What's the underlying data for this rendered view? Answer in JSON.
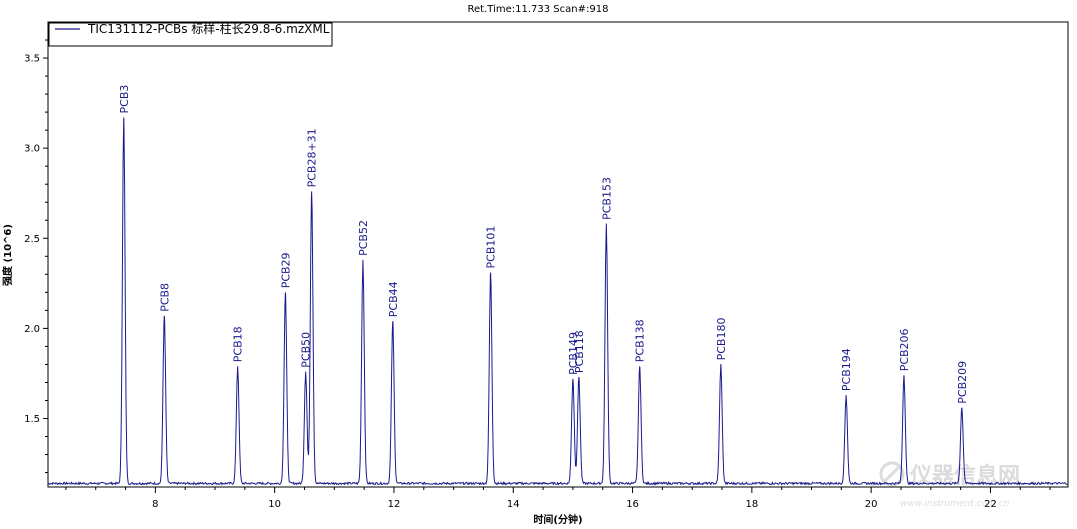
{
  "header": {
    "ret_time": "Ret.Time:11.733  Scan#:918"
  },
  "legend": {
    "label": "TIC131112-PCBs 标样-柱长29.8-6.mzXML"
  },
  "watermark": {
    "main": "仪器信息网",
    "sub": "www.instrument.com.cn"
  },
  "colors": {
    "trace": "#1a1a8c",
    "axis": "#000000",
    "background": "#ffffff"
  },
  "chart_data": {
    "type": "line",
    "xlabel": "时间(分钟)",
    "ylabel": "强度 (10^6)",
    "xlim": [
      6.2,
      23.3
    ],
    "ylim": [
      1.12,
      3.7
    ],
    "x_ticks": [
      8,
      10,
      12,
      14,
      16,
      18,
      20,
      22
    ],
    "x_tick_labels": [
      "8",
      "10",
      "12",
      "14",
      "16",
      "18",
      "20",
      "22"
    ],
    "y_ticks": [
      1.5,
      2.0,
      2.5,
      3.0,
      3.5
    ],
    "y_tick_labels": [
      "1.5",
      "2.0",
      "2.5",
      "3.0",
      "3.5"
    ],
    "baseline": 1.14,
    "grid": false,
    "legend_position": "top-left",
    "series": [
      {
        "name": "TIC131112-PCBs 标样-柱长29.8-6.mzXML",
        "peaks": [
          {
            "label": "PCB3",
            "rt": 7.47,
            "intensity": 3.17
          },
          {
            "label": "PCB8",
            "rt": 8.15,
            "intensity": 2.07
          },
          {
            "label": "PCB18",
            "rt": 9.38,
            "intensity": 1.79
          },
          {
            "label": "PCB29",
            "rt": 10.18,
            "intensity": 2.2
          },
          {
            "label": "PCB50",
            "rt": 10.52,
            "intensity": 1.76
          },
          {
            "label": "PCB28+31",
            "rt": 10.62,
            "intensity": 2.76
          },
          {
            "label": "PCB52",
            "rt": 11.48,
            "intensity": 2.38
          },
          {
            "label": "PCB44",
            "rt": 11.98,
            "intensity": 2.04
          },
          {
            "label": "PCB101",
            "rt": 13.62,
            "intensity": 2.31
          },
          {
            "label": "PCB149",
            "rt": 15.0,
            "intensity": 1.72
          },
          {
            "label": "PCB118",
            "rt": 15.1,
            "intensity": 1.73
          },
          {
            "label": "PCB153",
            "rt": 15.56,
            "intensity": 2.58
          },
          {
            "label": "PCB138",
            "rt": 16.12,
            "intensity": 1.79
          },
          {
            "label": "PCB180",
            "rt": 17.48,
            "intensity": 1.8
          },
          {
            "label": "PCB194",
            "rt": 19.58,
            "intensity": 1.63
          },
          {
            "label": "PCB206",
            "rt": 20.55,
            "intensity": 1.74
          },
          {
            "label": "PCB209",
            "rt": 21.52,
            "intensity": 1.56
          }
        ]
      }
    ]
  }
}
